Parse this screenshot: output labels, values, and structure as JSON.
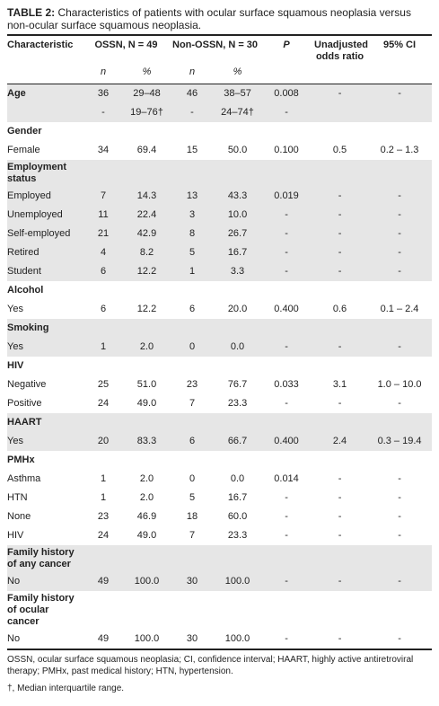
{
  "title": {
    "label": "TABLE 2:",
    "text": "Characteristics of patients with ocular surface squamous neoplasia versus non-ocular surface squamous neoplasia."
  },
  "table": {
    "header": {
      "characteristic": "Characteristic",
      "ossn": "OSSN, N = 49",
      "non_ossn": "Non-OSSN, N = 30",
      "p": "P",
      "odds_ratio": "Unadjusted odds ratio",
      "ci": "95% CI",
      "sub": [
        "n",
        "%",
        "n",
        "%"
      ]
    },
    "groups": [
      {
        "title": "Age",
        "cells": [
          "36",
          "29–48",
          "46",
          "38–57",
          "0.008",
          "-",
          "-"
        ],
        "rows": [
          {
            "cells": [
              "-",
              "19–76†",
              "-",
              "24–74†",
              "-",
              "",
              ""
            ]
          }
        ]
      },
      {
        "title": "Gender",
        "rows": [
          {
            "label": "Female",
            "cells": [
              "34",
              "69.4",
              "15",
              "50.0",
              "0.100",
              "0.5",
              "0.2 – 1.3"
            ]
          }
        ]
      },
      {
        "title": "Employment status",
        "rows": [
          {
            "label": "Employed",
            "cells": [
              "7",
              "14.3",
              "13",
              "43.3",
              "0.019",
              "-",
              "-"
            ]
          },
          {
            "label": "Unemployed",
            "cells": [
              "11",
              "22.4",
              "3",
              "10.0",
              "-",
              "-",
              "-"
            ]
          },
          {
            "label": "Self-employed",
            "cells": [
              "21",
              "42.9",
              "8",
              "26.7",
              "-",
              "-",
              "-"
            ]
          },
          {
            "label": "Retired",
            "cells": [
              "4",
              "8.2",
              "5",
              "16.7",
              "-",
              "-",
              "-"
            ]
          },
          {
            "label": "Student",
            "cells": [
              "6",
              "12.2",
              "1",
              "3.3",
              "-",
              "-",
              "-"
            ]
          }
        ]
      },
      {
        "title": "Alcohol",
        "rows": [
          {
            "label": "Yes",
            "cells": [
              "6",
              "12.2",
              "6",
              "20.0",
              "0.400",
              "0.6",
              "0.1 – 2.4"
            ]
          }
        ]
      },
      {
        "title": "Smoking",
        "rows": [
          {
            "label": "Yes",
            "cells": [
              "1",
              "2.0",
              "0",
              "0.0",
              "-",
              "-",
              "-"
            ]
          }
        ]
      },
      {
        "title": "HIV",
        "rows": [
          {
            "label": "Negative",
            "cells": [
              "25",
              "51.0",
              "23",
              "76.7",
              "0.033",
              "3.1",
              "1.0 – 10.0"
            ]
          },
          {
            "label": "Positive",
            "cells": [
              "24",
              "49.0",
              "7",
              "23.3",
              "-",
              "-",
              "-"
            ]
          }
        ]
      },
      {
        "title": "HAART",
        "rows": [
          {
            "label": "Yes",
            "cells": [
              "20",
              "83.3",
              "6",
              "66.7",
              "0.400",
              "2.4",
              "0.3 – 19.4"
            ]
          }
        ]
      },
      {
        "title": "PMHx",
        "rows": [
          {
            "label": "Asthma",
            "cells": [
              "1",
              "2.0",
              "0",
              "0.0",
              "0.014",
              "-",
              "-"
            ]
          },
          {
            "label": "HTN",
            "cells": [
              "1",
              "2.0",
              "5",
              "16.7",
              "-",
              "-",
              "-"
            ]
          },
          {
            "label": "None",
            "cells": [
              "23",
              "46.9",
              "18",
              "60.0",
              "-",
              "-",
              "-"
            ]
          },
          {
            "label": "HIV",
            "cells": [
              "24",
              "49.0",
              "7",
              "23.3",
              "-",
              "-",
              "-"
            ]
          }
        ]
      },
      {
        "title": "Family history of any cancer",
        "rows": [
          {
            "label": "No",
            "cells": [
              "49",
              "100.0",
              "30",
              "100.0",
              "-",
              "-",
              "-"
            ]
          }
        ]
      },
      {
        "title": "Family history of ocular cancer",
        "rows": [
          {
            "label": "No",
            "cells": [
              "49",
              "100.0",
              "30",
              "100.0",
              "-",
              "-",
              "-"
            ]
          }
        ]
      }
    ]
  },
  "notes": [
    "OSSN, ocular surface squamous neoplasia; CI, confidence interval; HAART, highly active antiretroviral therapy; PMHx, past medical history; HTN, hypertension.",
    "†, Median interquartile range."
  ]
}
